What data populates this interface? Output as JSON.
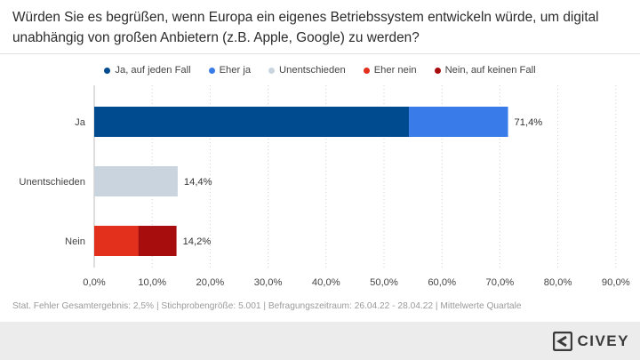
{
  "title": "Würden Sie es begrüßen, wenn Europa ein eigenes Betriebssystem entwickeln würde, um digital unabhängig von großen Anbietern (z.B. Apple, Google) zu werden?",
  "legend": [
    {
      "label": "Ja, auf jeden Fall",
      "color": "#004a8f"
    },
    {
      "label": "Eher ja",
      "color": "#3a7bea"
    },
    {
      "label": "Unentschieden",
      "color": "#c9d4de"
    },
    {
      "label": "Eher nein",
      "color": "#e3301c"
    },
    {
      "label": "Nein, auf keinen Fall",
      "color": "#a80d0d"
    }
  ],
  "chart_data": {
    "type": "bar",
    "orientation": "horizontal",
    "stacked": true,
    "categories": [
      "Ja",
      "Unentschieden",
      "Nein"
    ],
    "series": [
      {
        "name": "Ja, auf jeden Fall",
        "color": "#004a8f",
        "values": [
          54.3,
          0,
          0
        ]
      },
      {
        "name": "Eher ja",
        "color": "#3a7bea",
        "values": [
          17.1,
          0,
          0
        ]
      },
      {
        "name": "Unentschieden",
        "color": "#c9d4de",
        "values": [
          0,
          14.4,
          0
        ]
      },
      {
        "name": "Eher nein",
        "color": "#e3301c",
        "values": [
          0,
          0,
          7.6
        ]
      },
      {
        "name": "Nein, auf keinen Fall",
        "color": "#a80d0d",
        "values": [
          0,
          0,
          6.6
        ]
      }
    ],
    "totals": [
      "71,4%",
      "14,4%",
      "14,2%"
    ],
    "x_ticks": [
      "0,0%",
      "10,0%",
      "20,0%",
      "30,0%",
      "40,0%",
      "50,0%",
      "60,0%",
      "70,0%",
      "80,0%",
      "90,0%"
    ],
    "xlim": [
      0,
      90
    ],
    "grid": "vertical-dotted",
    "legend_position": "top"
  },
  "footnote": "Stat. Fehler Gesamtergebnis: 2,5% | Stichprobengröße: 5.001 | Befragungszeitraum: 26.04.22 - 28.04.22 | Mittelwerte Quartale",
  "brand": {
    "name": "CIVEY",
    "icon": "civey-logo-icon"
  }
}
